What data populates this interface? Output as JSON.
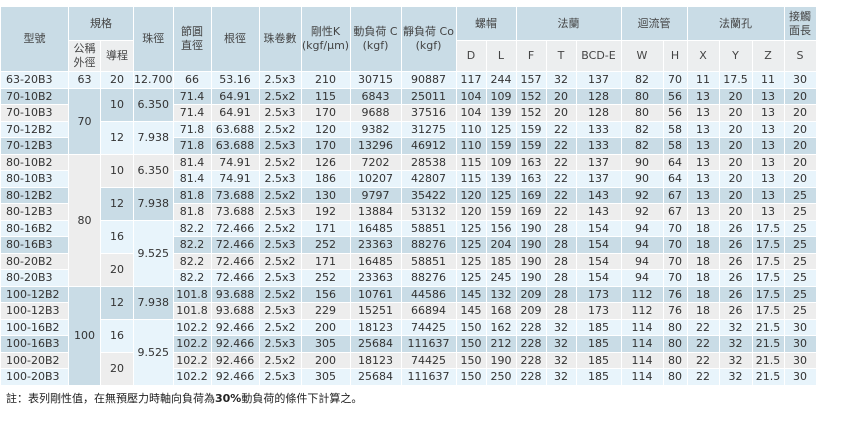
{
  "header": {
    "model": "型號",
    "spec": "規格",
    "nominal_od": "公稱外徑",
    "lead": "導程",
    "ball_dia": "珠徑",
    "pcd": "節圓直徑",
    "root_dia": "根徑",
    "circuits": "珠卷數",
    "stiffness": "剛性K (kgf/μm)",
    "dynamic_load": "動負荷 C (kgf)",
    "static_load": "靜負荷 Co (kgf)",
    "nut": "螺帽",
    "flange": "法蘭",
    "return_tube": "迴流管",
    "flange_hole": "法蘭孔",
    "contact_len": "接觸面長",
    "sub": [
      "D",
      "L",
      "F",
      "T",
      "BCD-E",
      "W",
      "H",
      "X",
      "Y",
      "Z",
      "S"
    ]
  },
  "rows": [
    [
      "63-20B3",
      "63",
      "20",
      "12.700",
      "66",
      "53.16",
      "2.5x3",
      "210",
      "30715",
      "90887",
      "117",
      "244",
      "157",
      "32",
      "137",
      "82",
      "70",
      "11",
      "17.5",
      "11",
      "30"
    ],
    [
      "70-10B2",
      "70",
      "10",
      "6.350",
      "71.4",
      "64.91",
      "2.5x2",
      "115",
      "6843",
      "25011",
      "104",
      "109",
      "152",
      "20",
      "128",
      "80",
      "56",
      "13",
      "20",
      "13",
      "20"
    ],
    [
      "70-10B3",
      "70",
      "10",
      "6.350",
      "71.4",
      "64.91",
      "2.5x3",
      "170",
      "9688",
      "37516",
      "104",
      "139",
      "152",
      "20",
      "128",
      "80",
      "56",
      "13",
      "20",
      "13",
      "20"
    ],
    [
      "70-12B2",
      "70",
      "12",
      "7.938",
      "71.8",
      "63.688",
      "2.5x2",
      "120",
      "9382",
      "31275",
      "110",
      "125",
      "159",
      "22",
      "133",
      "82",
      "58",
      "13",
      "20",
      "13",
      "20"
    ],
    [
      "70-12B3",
      "70",
      "12",
      "7.938",
      "71.8",
      "63.688",
      "2.5x3",
      "170",
      "13296",
      "46912",
      "110",
      "159",
      "159",
      "22",
      "133",
      "82",
      "58",
      "13",
      "20",
      "13",
      "20"
    ],
    [
      "80-10B2",
      "80",
      "10",
      "6.350",
      "81.4",
      "74.91",
      "2.5x2",
      "126",
      "7202",
      "28538",
      "115",
      "109",
      "163",
      "22",
      "137",
      "90",
      "64",
      "13",
      "20",
      "13",
      "20"
    ],
    [
      "80-10B3",
      "80",
      "10",
      "6.350",
      "81.4",
      "74.91",
      "2.5x3",
      "186",
      "10207",
      "42807",
      "115",
      "139",
      "163",
      "22",
      "137",
      "90",
      "64",
      "13",
      "20",
      "13",
      "20"
    ],
    [
      "80-12B2",
      "80",
      "12",
      "7.938",
      "81.8",
      "73.688",
      "2.5x2",
      "130",
      "9797",
      "35422",
      "120",
      "125",
      "169",
      "22",
      "143",
      "92",
      "67",
      "13",
      "20",
      "13",
      "25"
    ],
    [
      "80-12B3",
      "80",
      "12",
      "7.938",
      "81.8",
      "73.688",
      "2.5x3",
      "192",
      "13884",
      "53132",
      "120",
      "159",
      "169",
      "22",
      "143",
      "92",
      "67",
      "13",
      "20",
      "13",
      "25"
    ],
    [
      "80-16B2",
      "80",
      "16",
      "9.525",
      "82.2",
      "72.466",
      "2.5x2",
      "171",
      "16485",
      "58851",
      "125",
      "156",
      "190",
      "28",
      "154",
      "94",
      "70",
      "18",
      "26",
      "17.5",
      "25"
    ],
    [
      "80-16B3",
      "80",
      "16",
      "9.525",
      "82.2",
      "72.466",
      "2.5x3",
      "252",
      "23363",
      "88276",
      "125",
      "204",
      "190",
      "28",
      "154",
      "94",
      "70",
      "18",
      "26",
      "17.5",
      "25"
    ],
    [
      "80-20B2",
      "80",
      "20",
      "9.525",
      "82.2",
      "72.466",
      "2.5x2",
      "171",
      "16485",
      "58851",
      "125",
      "185",
      "190",
      "28",
      "154",
      "94",
      "70",
      "18",
      "26",
      "17.5",
      "25"
    ],
    [
      "80-20B3",
      "80",
      "20",
      "9.525",
      "82.2",
      "72.466",
      "2.5x3",
      "252",
      "23363",
      "88276",
      "125",
      "245",
      "190",
      "28",
      "154",
      "94",
      "70",
      "18",
      "26",
      "17.5",
      "25"
    ],
    [
      "100-12B2",
      "100",
      "12",
      "7.938",
      "101.8",
      "93.688",
      "2.5x2",
      "156",
      "10761",
      "44586",
      "145",
      "132",
      "209",
      "28",
      "173",
      "112",
      "76",
      "18",
      "26",
      "17.5",
      "25"
    ],
    [
      "100-12B3",
      "100",
      "12",
      "7.938",
      "101.8",
      "93.688",
      "2.5x3",
      "229",
      "15251",
      "66894",
      "145",
      "168",
      "209",
      "28",
      "173",
      "112",
      "76",
      "18",
      "26",
      "17.5",
      "25"
    ],
    [
      "100-16B2",
      "100",
      "16",
      "9.525",
      "102.2",
      "92.466",
      "2.5x2",
      "200",
      "18123",
      "74425",
      "150",
      "162",
      "228",
      "32",
      "185",
      "114",
      "80",
      "22",
      "32",
      "21.5",
      "30"
    ],
    [
      "100-16B3",
      "100",
      "16",
      "9.525",
      "102.2",
      "92.466",
      "2.5x3",
      "305",
      "25684",
      "111637",
      "150",
      "212",
      "228",
      "32",
      "185",
      "114",
      "80",
      "22",
      "32",
      "21.5",
      "30"
    ],
    [
      "100-20B2",
      "100",
      "20",
      "9.525",
      "102.2",
      "92.466",
      "2.5x2",
      "200",
      "18123",
      "74425",
      "150",
      "190",
      "228",
      "32",
      "185",
      "114",
      "80",
      "22",
      "32",
      "21.5",
      "30"
    ],
    [
      "100-20B3",
      "100",
      "20",
      "9.525",
      "102.2",
      "92.466",
      "2.5x3",
      "305",
      "25684",
      "111637",
      "150",
      "250",
      "228",
      "32",
      "185",
      "114",
      "80",
      "22",
      "32",
      "21.5",
      "30"
    ]
  ],
  "note": {
    "prefix": "註：表列剛性值，在無預壓力時軸向負荷為",
    "bold": "30%",
    "suffix": "動負荷的條件下計算之。"
  },
  "colors": {
    "header": "#c9dce6",
    "row_light_blue": "#e8f4fb",
    "row_blue_gray": "#c9dce6",
    "row_gray": "#ededed"
  }
}
